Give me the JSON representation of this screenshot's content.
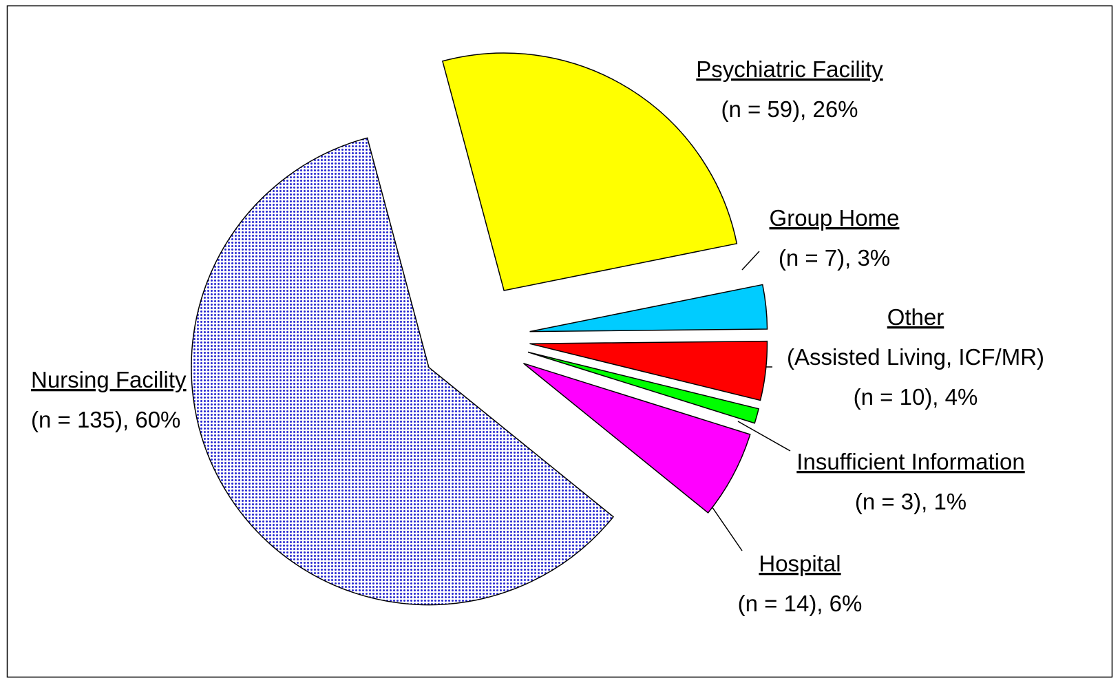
{
  "chart_data": {
    "type": "pie",
    "categories": [
      "Psychiatric Facility",
      "Group Home",
      "Other",
      "Insufficient Information",
      "Hospital",
      "Nursing Facility"
    ],
    "sublabels": [
      null,
      null,
      "(Assisted Living, ICF/MR)",
      null,
      null,
      null
    ],
    "values": [
      26,
      3,
      4,
      1,
      6,
      60
    ],
    "value_labels": [
      "(n = 59),  26%",
      "(n = 7),  3%",
      "(n = 10),  4%",
      "(n = 3),  1%",
      "(n = 14),  6%",
      "(n = 135),  60%"
    ],
    "colors": [
      "#ffff00",
      "#00ccff",
      "#ff0000",
      "#00ff00",
      "#ff00ff",
      "url(#dots)"
    ],
    "start_angle": -15,
    "exploded": true
  }
}
